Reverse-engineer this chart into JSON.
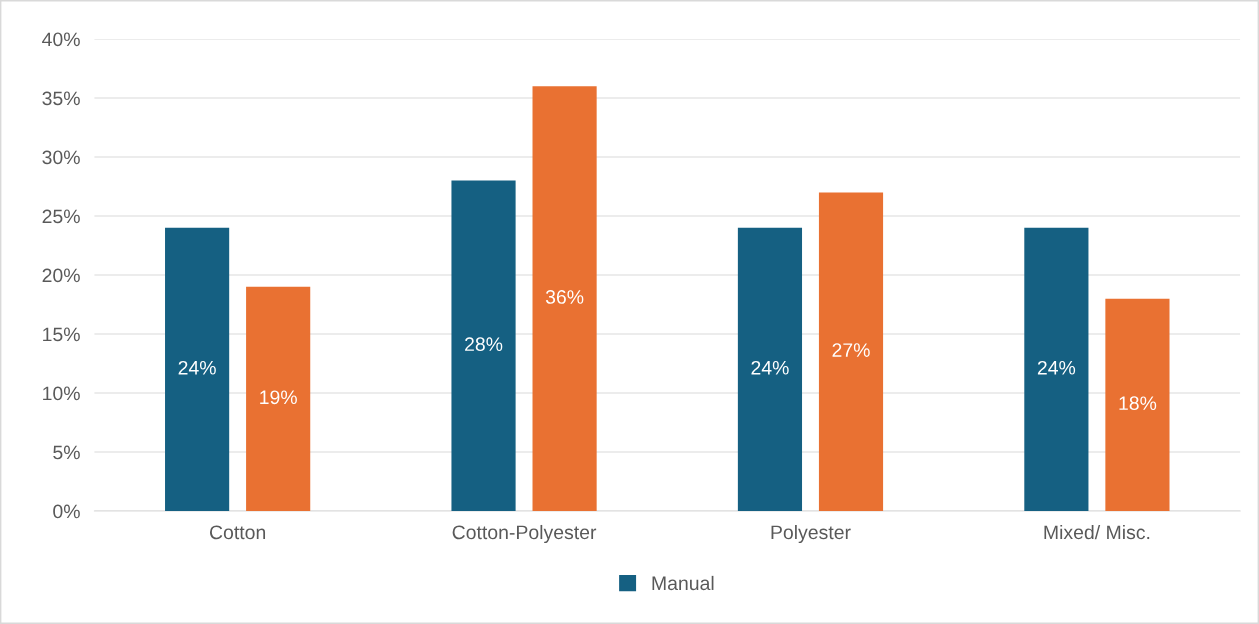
{
  "chart_data": {
    "type": "bar",
    "categories": [
      "Cotton",
      "Cotton-Polyester",
      "Polyester",
      "Mixed/ Misc."
    ],
    "series": [
      {
        "name": "Manual",
        "color": "#156082",
        "values": [
          24,
          28,
          24,
          24
        ],
        "value_labels": [
          "24%",
          "28%",
          "24%",
          "24%"
        ]
      },
      {
        "color": "#e97132",
        "values": [
          19,
          36,
          27,
          18
        ],
        "value_labels": [
          "19%",
          "36%",
          "27%",
          "18%"
        ]
      }
    ],
    "ylim": [
      0,
      40
    ],
    "yticks": [
      {
        "value": 0,
        "label": "0%"
      },
      {
        "value": 5,
        "label": "5%"
      },
      {
        "value": 10,
        "label": "10%"
      },
      {
        "value": 15,
        "label": "15%"
      },
      {
        "value": 20,
        "label": "20%"
      },
      {
        "value": 25,
        "label": "25%"
      },
      {
        "value": 30,
        "label": "30%"
      },
      {
        "value": 35,
        "label": "35%"
      },
      {
        "value": 40,
        "label": "40%"
      }
    ],
    "grid": "y",
    "legend": "bottom"
  }
}
